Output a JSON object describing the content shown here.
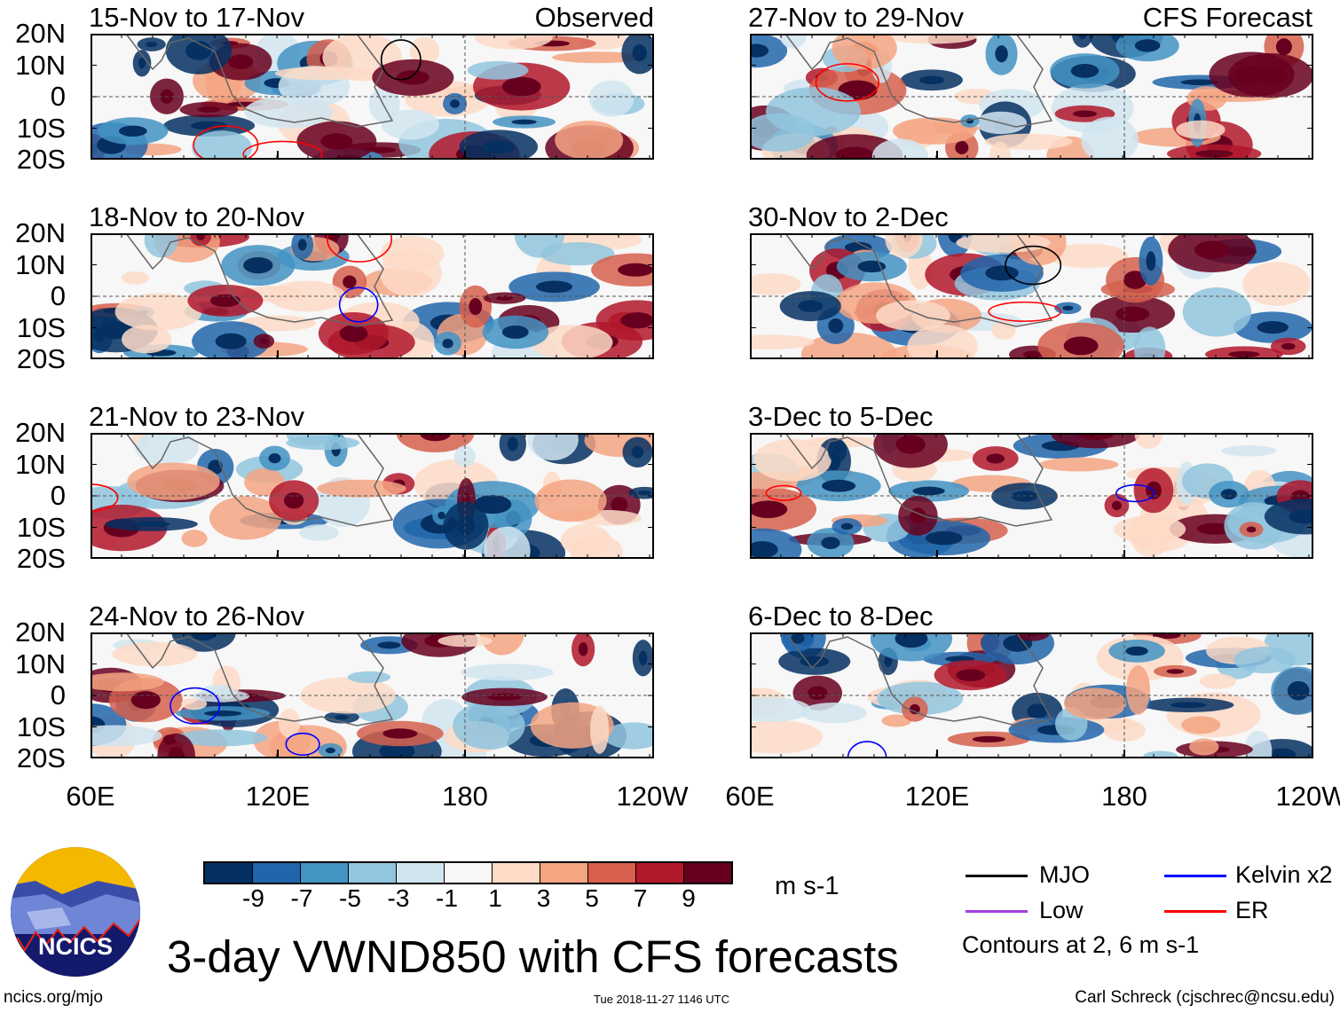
{
  "panels_left": [
    {
      "title": "15-Nov to 17-Nov",
      "tag": "Observed"
    },
    {
      "title": "18-Nov to 20-Nov"
    },
    {
      "title": "21-Nov to 23-Nov"
    },
    {
      "title": "24-Nov to 26-Nov"
    }
  ],
  "panels_right": [
    {
      "title": "27-Nov to 29-Nov",
      "tag": "CFS Forecast"
    },
    {
      "title": "30-Nov to 2-Dec"
    },
    {
      "title": "3-Dec to 5-Dec"
    },
    {
      "title": "6-Dec to 8-Dec"
    }
  ],
  "lat_labels": [
    "20N",
    "10N",
    "0",
    "10S",
    "20S"
  ],
  "lon_labels": [
    "60E",
    "120E",
    "180",
    "120W"
  ],
  "colorbar": {
    "colors": [
      "#053061",
      "#2166ac",
      "#4393c3",
      "#92c5de",
      "#d1e5f0",
      "#f7f7f7",
      "#fddbc7",
      "#f4a582",
      "#d6604d",
      "#b2182b",
      "#67001f"
    ],
    "labels": [
      "-9",
      "-7",
      "-5",
      "-3",
      "-1",
      "1",
      "3",
      "5",
      "7",
      "9"
    ],
    "units": "m s-1"
  },
  "legend": {
    "items": [
      {
        "label": "MJO",
        "color": "#000000"
      },
      {
        "label": "Kelvin x2",
        "color": "#0000ff"
      },
      {
        "label": "Low",
        "color": "#a040e0"
      },
      {
        "label": "ER",
        "color": "#ff0000"
      }
    ],
    "note": "Contours at 2, 6 m s-1"
  },
  "logo_text": "NCICS",
  "main_title": "3-day VWND850 with CFS forecasts",
  "footer": {
    "url": "ncics.org/mjo",
    "timestamp": "Tue 2018-11-27 1146 UTC",
    "author": "Carl Schreck (cjschrec@ncsu.edu)"
  }
}
